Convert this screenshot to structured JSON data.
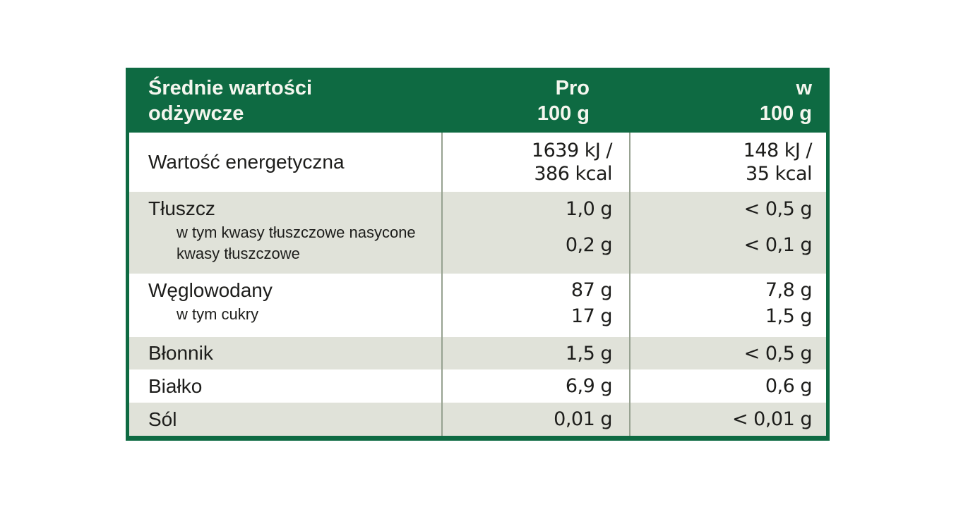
{
  "header": {
    "title_line1": "Średnie wartości",
    "title_line2": "odżywcze",
    "col2_line1": "Pro",
    "col2_line2": "100 g",
    "col3_line1": "w",
    "col3_line2": "100 g"
  },
  "rows": [
    {
      "label": "Wartość energetyczna",
      "pro_100g": [
        "1639 kJ /",
        "386 kcal"
      ],
      "w_100g": [
        "148 kJ /",
        "35 kcal"
      ]
    },
    {
      "label": "Tłuszcz",
      "sublabels": [
        "w tym kwasy tłuszczowe nasycone",
        "kwasy tłuszczowe"
      ],
      "pro_100g": [
        "1,0 g",
        "0,2 g"
      ],
      "w_100g": [
        "< 0,5 g",
        "< 0,1 g"
      ]
    },
    {
      "label": "Węglowodany",
      "sublabels": [
        "w tym cukry"
      ],
      "pro_100g": [
        "87 g",
        "17 g"
      ],
      "w_100g": [
        "7,8 g",
        "1,5 g"
      ]
    },
    {
      "label": "Błonnik",
      "pro_100g": [
        "1,5 g"
      ],
      "w_100g": [
        "< 0,5 g"
      ]
    },
    {
      "label": "Białko",
      "pro_100g": [
        "6,9 g"
      ],
      "w_100g": [
        "0,6 g"
      ]
    },
    {
      "label": "Sól",
      "pro_100g": [
        "0,01 g"
      ],
      "w_100g": [
        "< 0,01 g"
      ]
    }
  ],
  "colors": {
    "header_green": "#0e6a42",
    "row_shade": "#e0e2d9",
    "divider": "#97a291",
    "text": "#1d1d1b",
    "header_text": "#f4f6ee"
  }
}
